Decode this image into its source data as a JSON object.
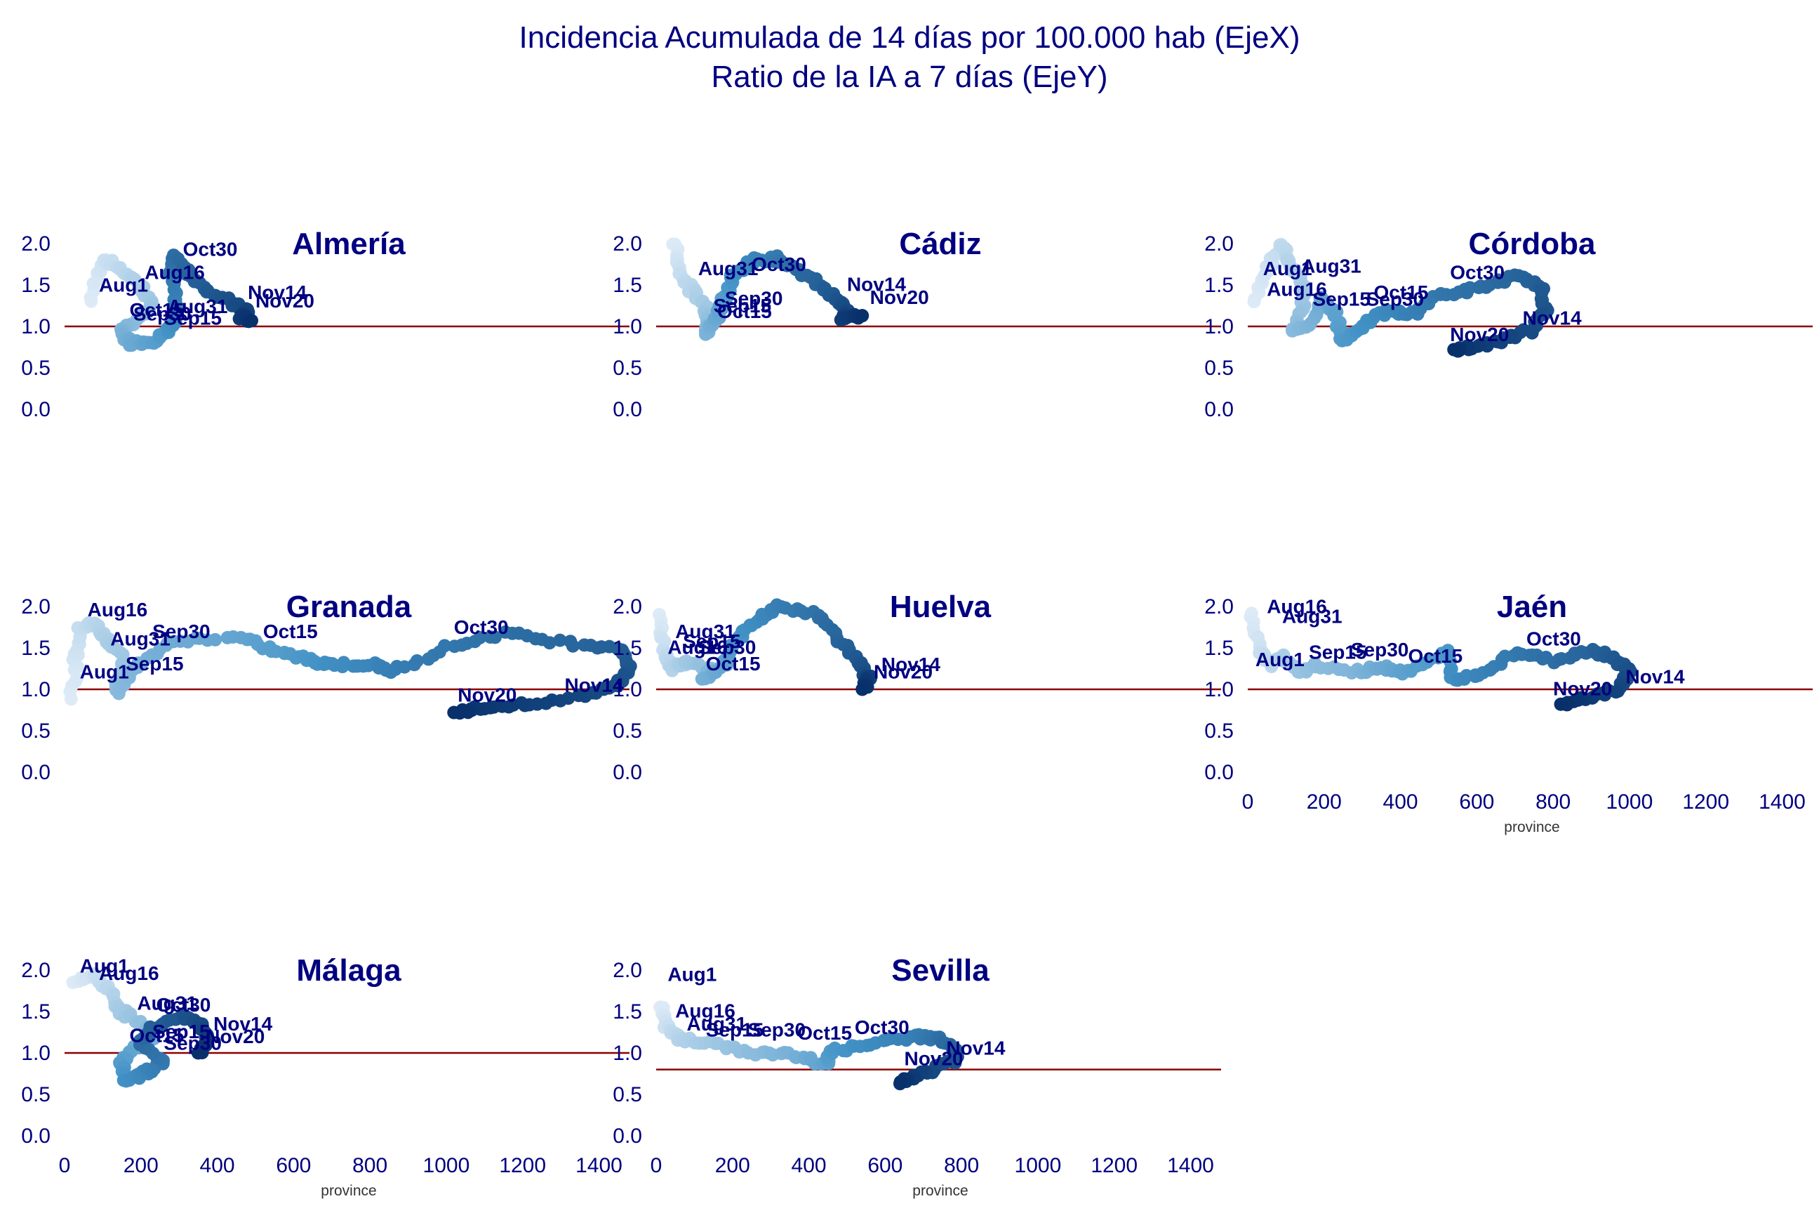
{
  "title_line1": "Incidencia Acumulada de 14 días por 100.000 hab (EjeX)",
  "title_line2": "Ratio de la IA a 7 días (EjeY)",
  "chart_data": {
    "type": "scatter",
    "x_axis_label": "province",
    "x_ticks": [
      0,
      200,
      400,
      600,
      800,
      1000,
      1200,
      1400
    ],
    "y_ticks": [
      0.0,
      0.5,
      1.0,
      1.5,
      2.0
    ],
    "xlim": [
      0,
      1480
    ],
    "ylim": [
      0,
      2.0
    ],
    "color_scale": [
      "#deebf7",
      "#08306b"
    ],
    "reference_line_color": "#8b0000",
    "panels": [
      {
        "name": "Almería",
        "ref": 1.0,
        "anchors": [
          {
            "x": 70,
            "y": 1.3
          },
          {
            "x": 100,
            "y": 1.82
          },
          {
            "x": 150,
            "y": 1.68
          },
          {
            "x": 200,
            "y": 1.5
          },
          {
            "x": 230,
            "y": 1.25
          },
          {
            "x": 180,
            "y": 1.05
          },
          {
            "x": 150,
            "y": 0.92
          },
          {
            "x": 175,
            "y": 0.8
          },
          {
            "x": 230,
            "y": 0.82
          },
          {
            "x": 270,
            "y": 0.92
          },
          {
            "x": 290,
            "y": 1.05
          },
          {
            "x": 290,
            "y": 1.25
          },
          {
            "x": 280,
            "y": 1.65
          },
          {
            "x": 290,
            "y": 1.85
          },
          {
            "x": 330,
            "y": 1.62
          },
          {
            "x": 380,
            "y": 1.42
          },
          {
            "x": 440,
            "y": 1.28
          },
          {
            "x": 480,
            "y": 1.18
          },
          {
            "x": 460,
            "y": 1.12
          },
          {
            "x": 490,
            "y": 1.07
          }
        ],
        "labels": [
          {
            "text": "Oct30",
            "x": 310,
            "y": 1.85
          },
          {
            "text": "Aug16",
            "x": 210,
            "y": 1.57
          },
          {
            "text": "Aug1",
            "x": 90,
            "y": 1.42
          },
          {
            "text": "Nov14",
            "x": 480,
            "y": 1.33
          },
          {
            "text": "Nov20",
            "x": 500,
            "y": 1.23
          },
          {
            "text": "Oct15",
            "x": 170,
            "y": 1.12
          },
          {
            "text": "Aug31",
            "x": 270,
            "y": 1.16
          },
          {
            "text": "Sep30",
            "x": 180,
            "y": 1.07
          },
          {
            "text": "Sep15",
            "x": 260,
            "y": 1.02
          }
        ]
      },
      {
        "name": "Cádiz",
        "ref": 1.0,
        "anchors": [
          {
            "x": 50,
            "y": 2.0
          },
          {
            "x": 60,
            "y": 1.7
          },
          {
            "x": 90,
            "y": 1.45
          },
          {
            "x": 130,
            "y": 1.25
          },
          {
            "x": 140,
            "y": 1.05
          },
          {
            "x": 130,
            "y": 0.92
          },
          {
            "x": 160,
            "y": 1.1
          },
          {
            "x": 180,
            "y": 1.35
          },
          {
            "x": 200,
            "y": 1.6
          },
          {
            "x": 260,
            "y": 1.8
          },
          {
            "x": 320,
            "y": 1.82
          },
          {
            "x": 360,
            "y": 1.7
          },
          {
            "x": 430,
            "y": 1.5
          },
          {
            "x": 470,
            "y": 1.32
          },
          {
            "x": 500,
            "y": 1.2
          },
          {
            "x": 490,
            "y": 1.1
          },
          {
            "x": 540,
            "y": 1.13
          }
        ],
        "labels": [
          {
            "text": "Aug31",
            "x": 110,
            "y": 1.62
          },
          {
            "text": "Oct30",
            "x": 250,
            "y": 1.67
          },
          {
            "text": "Nov14",
            "x": 500,
            "y": 1.43
          },
          {
            "text": "Nov20",
            "x": 560,
            "y": 1.27
          },
          {
            "text": "Sep30",
            "x": 180,
            "y": 1.26
          },
          {
            "text": "Sep15",
            "x": 150,
            "y": 1.17
          },
          {
            "text": "Oct15",
            "x": 160,
            "y": 1.1
          }
        ]
      },
      {
        "name": "Córdoba",
        "ref": 1.0,
        "anchors": [
          {
            "x": 20,
            "y": 1.3
          },
          {
            "x": 50,
            "y": 1.7
          },
          {
            "x": 90,
            "y": 2.0
          },
          {
            "x": 110,
            "y": 1.75
          },
          {
            "x": 150,
            "y": 1.5
          },
          {
            "x": 140,
            "y": 1.2
          },
          {
            "x": 120,
            "y": 0.92
          },
          {
            "x": 170,
            "y": 1.05
          },
          {
            "x": 190,
            "y": 1.35
          },
          {
            "x": 230,
            "y": 1.15
          },
          {
            "x": 250,
            "y": 0.82
          },
          {
            "x": 300,
            "y": 1.0
          },
          {
            "x": 360,
            "y": 1.18
          },
          {
            "x": 430,
            "y": 1.15
          },
          {
            "x": 500,
            "y": 1.38
          },
          {
            "x": 600,
            "y": 1.45
          },
          {
            "x": 700,
            "y": 1.6
          },
          {
            "x": 770,
            "y": 1.48
          },
          {
            "x": 780,
            "y": 1.22
          },
          {
            "x": 740,
            "y": 0.95
          },
          {
            "x": 650,
            "y": 0.8
          },
          {
            "x": 580,
            "y": 0.75
          },
          {
            "x": 540,
            "y": 0.72
          }
        ],
        "labels": [
          {
            "text": "Aug1",
            "x": 40,
            "y": 1.62
          },
          {
            "text": "Aug31",
            "x": 140,
            "y": 1.65
          },
          {
            "text": "Aug16",
            "x": 50,
            "y": 1.37
          },
          {
            "text": "Oct30",
            "x": 530,
            "y": 1.57
          },
          {
            "text": "Oct15",
            "x": 330,
            "y": 1.33
          },
          {
            "text": "Sep15",
            "x": 170,
            "y": 1.25
          },
          {
            "text": "Sep30",
            "x": 310,
            "y": 1.25
          },
          {
            "text": "Nov14",
            "x": 720,
            "y": 1.02
          },
          {
            "text": "Nov20",
            "x": 530,
            "y": 0.82
          }
        ]
      },
      {
        "name": "Granada",
        "ref": 1.0,
        "anchors": [
          {
            "x": 20,
            "y": 0.9
          },
          {
            "x": 30,
            "y": 1.4
          },
          {
            "x": 40,
            "y": 1.75
          },
          {
            "x": 80,
            "y": 1.8
          },
          {
            "x": 110,
            "y": 1.62
          },
          {
            "x": 150,
            "y": 1.4
          },
          {
            "x": 140,
            "y": 1.1
          },
          {
            "x": 140,
            "y": 0.98
          },
          {
            "x": 200,
            "y": 1.35
          },
          {
            "x": 300,
            "y": 1.6
          },
          {
            "x": 460,
            "y": 1.62
          },
          {
            "x": 560,
            "y": 1.45
          },
          {
            "x": 650,
            "y": 1.35
          },
          {
            "x": 700,
            "y": 1.3
          },
          {
            "x": 800,
            "y": 1.3
          },
          {
            "x": 860,
            "y": 1.22
          },
          {
            "x": 1000,
            "y": 1.5
          },
          {
            "x": 1150,
            "y": 1.68
          },
          {
            "x": 1320,
            "y": 1.56
          },
          {
            "x": 1460,
            "y": 1.5
          },
          {
            "x": 1480,
            "y": 1.28
          },
          {
            "x": 1450,
            "y": 1.05
          },
          {
            "x": 1380,
            "y": 0.95
          },
          {
            "x": 1220,
            "y": 0.82
          },
          {
            "x": 1100,
            "y": 0.78
          },
          {
            "x": 1020,
            "y": 0.72
          }
        ],
        "labels": [
          {
            "text": "Aug16",
            "x": 60,
            "y": 1.88
          },
          {
            "text": "Sep30",
            "x": 230,
            "y": 1.62
          },
          {
            "text": "Oct15",
            "x": 520,
            "y": 1.62
          },
          {
            "text": "Oct30",
            "x": 1020,
            "y": 1.67
          },
          {
            "text": "Aug31",
            "x": 120,
            "y": 1.53
          },
          {
            "text": "Sep15",
            "x": 160,
            "y": 1.23
          },
          {
            "text": "Aug1",
            "x": 40,
            "y": 1.13
          },
          {
            "text": "Nov20",
            "x": 1030,
            "y": 0.85
          },
          {
            "text": "Nov14",
            "x": 1310,
            "y": 0.97
          }
        ]
      },
      {
        "name": "Huelva",
        "ref": 1.0,
        "anchors": [
          {
            "x": 10,
            "y": 1.9
          },
          {
            "x": 20,
            "y": 1.5
          },
          {
            "x": 40,
            "y": 1.25
          },
          {
            "x": 80,
            "y": 1.35
          },
          {
            "x": 150,
            "y": 1.25
          },
          {
            "x": 120,
            "y": 1.12
          },
          {
            "x": 180,
            "y": 1.3
          },
          {
            "x": 200,
            "y": 1.55
          },
          {
            "x": 260,
            "y": 1.82
          },
          {
            "x": 320,
            "y": 2.0
          },
          {
            "x": 420,
            "y": 1.92
          },
          {
            "x": 480,
            "y": 1.6
          },
          {
            "x": 530,
            "y": 1.35
          },
          {
            "x": 550,
            "y": 1.12
          },
          {
            "x": 560,
            "y": 1.15
          },
          {
            "x": 540,
            "y": 1.0
          }
        ],
        "labels": [
          {
            "text": "Aug31",
            "x": 50,
            "y": 1.62
          },
          {
            "text": "Aug16",
            "x": 30,
            "y": 1.43
          },
          {
            "text": "Sep15",
            "x": 70,
            "y": 1.5
          },
          {
            "text": "Sep30",
            "x": 110,
            "y": 1.43
          },
          {
            "text": "Oct15",
            "x": 130,
            "y": 1.23
          },
          {
            "text": "Nov14",
            "x": 590,
            "y": 1.22
          },
          {
            "text": "Nov20",
            "x": 570,
            "y": 1.13
          }
        ]
      },
      {
        "name": "Jaén",
        "ref": 1.0,
        "anchors": [
          {
            "x": 10,
            "y": 1.9
          },
          {
            "x": 30,
            "y": 1.5
          },
          {
            "x": 60,
            "y": 1.3
          },
          {
            "x": 90,
            "y": 1.4
          },
          {
            "x": 130,
            "y": 1.2
          },
          {
            "x": 180,
            "y": 1.3
          },
          {
            "x": 300,
            "y": 1.2
          },
          {
            "x": 350,
            "y": 1.28
          },
          {
            "x": 420,
            "y": 1.2
          },
          {
            "x": 520,
            "y": 1.45
          },
          {
            "x": 540,
            "y": 1.1
          },
          {
            "x": 620,
            "y": 1.2
          },
          {
            "x": 700,
            "y": 1.45
          },
          {
            "x": 800,
            "y": 1.35
          },
          {
            "x": 900,
            "y": 1.48
          },
          {
            "x": 960,
            "y": 1.38
          },
          {
            "x": 1000,
            "y": 1.2
          },
          {
            "x": 970,
            "y": 1.0
          },
          {
            "x": 900,
            "y": 0.9
          },
          {
            "x": 820,
            "y": 0.82
          }
        ],
        "labels": [
          {
            "text": "Aug16",
            "x": 50,
            "y": 1.92
          },
          {
            "text": "Aug31",
            "x": 90,
            "y": 1.8
          },
          {
            "text": "Oct30",
            "x": 730,
            "y": 1.53
          },
          {
            "text": "Aug1",
            "x": 20,
            "y": 1.28
          },
          {
            "text": "Sep15",
            "x": 160,
            "y": 1.37
          },
          {
            "text": "Sep30",
            "x": 270,
            "y": 1.4
          },
          {
            "text": "Oct15",
            "x": 420,
            "y": 1.32
          },
          {
            "text": "Nov14",
            "x": 990,
            "y": 1.07
          },
          {
            "text": "Nov20",
            "x": 800,
            "y": 0.93
          }
        ]
      },
      {
        "name": "Málaga",
        "ref": 1.0,
        "anchors": [
          {
            "x": 20,
            "y": 1.85
          },
          {
            "x": 80,
            "y": 1.95
          },
          {
            "x": 120,
            "y": 1.72
          },
          {
            "x": 150,
            "y": 1.5
          },
          {
            "x": 200,
            "y": 1.35
          },
          {
            "x": 240,
            "y": 1.2
          },
          {
            "x": 180,
            "y": 1.05
          },
          {
            "x": 150,
            "y": 0.9
          },
          {
            "x": 160,
            "y": 0.65
          },
          {
            "x": 210,
            "y": 0.75
          },
          {
            "x": 260,
            "y": 0.88
          },
          {
            "x": 200,
            "y": 1.1
          },
          {
            "x": 230,
            "y": 1.3
          },
          {
            "x": 310,
            "y": 1.45
          },
          {
            "x": 360,
            "y": 1.32
          },
          {
            "x": 380,
            "y": 1.15
          },
          {
            "x": 350,
            "y": 1.0
          }
        ],
        "labels": [
          {
            "text": "Aug1",
            "x": 40,
            "y": 1.97
          },
          {
            "text": "Aug16",
            "x": 90,
            "y": 1.88
          },
          {
            "text": "Aug31",
            "x": 190,
            "y": 1.52
          },
          {
            "text": "Oct30",
            "x": 240,
            "y": 1.5
          },
          {
            "text": "Nov14",
            "x": 390,
            "y": 1.27
          },
          {
            "text": "Oct15",
            "x": 170,
            "y": 1.13
          },
          {
            "text": "Sep15",
            "x": 230,
            "y": 1.18
          },
          {
            "text": "Nov20",
            "x": 370,
            "y": 1.12
          },
          {
            "text": "Sep30",
            "x": 260,
            "y": 1.04
          }
        ]
      },
      {
        "name": "Sevilla",
        "ref": 0.8,
        "anchors": [
          {
            "x": 10,
            "y": 1.55
          },
          {
            "x": 30,
            "y": 1.3
          },
          {
            "x": 60,
            "y": 1.18
          },
          {
            "x": 150,
            "y": 1.1
          },
          {
            "x": 260,
            "y": 1.0
          },
          {
            "x": 360,
            "y": 0.98
          },
          {
            "x": 440,
            "y": 0.85
          },
          {
            "x": 460,
            "y": 1.02
          },
          {
            "x": 560,
            "y": 1.1
          },
          {
            "x": 680,
            "y": 1.2
          },
          {
            "x": 740,
            "y": 1.18
          },
          {
            "x": 780,
            "y": 1.05
          },
          {
            "x": 790,
            "y": 0.92
          },
          {
            "x": 730,
            "y": 0.8
          },
          {
            "x": 680,
            "y": 0.72
          },
          {
            "x": 640,
            "y": 0.65
          }
        ],
        "labels": [
          {
            "text": "Aug1",
            "x": 30,
            "y": 1.87
          },
          {
            "text": "Aug16",
            "x": 50,
            "y": 1.43
          },
          {
            "text": "Aug31",
            "x": 80,
            "y": 1.27
          },
          {
            "text": "Sep15",
            "x": 130,
            "y": 1.2
          },
          {
            "text": "Sep30",
            "x": 240,
            "y": 1.2
          },
          {
            "text": "Oct15",
            "x": 370,
            "y": 1.16
          },
          {
            "text": "Oct30",
            "x": 520,
            "y": 1.23
          },
          {
            "text": "Nov14",
            "x": 760,
            "y": 0.98
          },
          {
            "text": "Nov20",
            "x": 650,
            "y": 0.85
          }
        ]
      }
    ]
  }
}
